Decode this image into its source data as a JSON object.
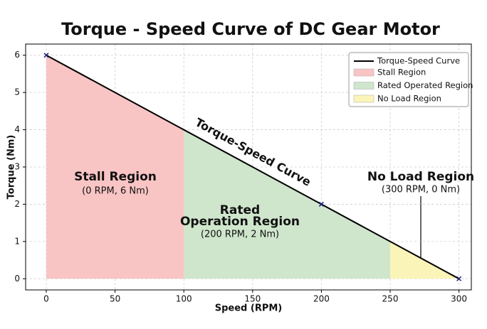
{
  "chart_data": {
    "type": "line",
    "title": "Torque - Speed Curve of DC Gear Motor",
    "x_label": "Speed (RPM)",
    "y_label": "Torque (Nm)",
    "x": [
      0,
      200,
      300
    ],
    "series": [
      {
        "name": "Torque-Speed Curve",
        "color": "#000000",
        "marker_color": "#1a1a7a",
        "values": [
          6,
          2,
          0
        ]
      }
    ],
    "regions": [
      {
        "name": "Stall Region",
        "color": "#f9c4c4",
        "x": [
          0,
          100
        ]
      },
      {
        "name": "Rated Operated Region",
        "color": "#cfe6cc",
        "x": [
          100,
          250
        ]
      },
      {
        "name": "No Load Region",
        "color": "#fbf4b8",
        "x": [
          250,
          300
        ]
      }
    ],
    "curve_label": "Torque-Speed Curve",
    "annotations": [
      "Stall Region",
      "(0 RPM, 6 Nm)",
      "Rated",
      "Operation Region",
      "(200 RPM, 2 Nm)",
      "No Load Region",
      "(300 RPM, 0 Nm)"
    ],
    "xlim": [
      -15,
      309
    ],
    "ylim": [
      -0.3,
      6.3
    ],
    "xticks": [
      0,
      50,
      100,
      150,
      200,
      250,
      300
    ],
    "yticks": [
      0,
      1,
      2,
      3,
      4,
      5,
      6
    ],
    "grid": true,
    "legend": "upper right"
  }
}
